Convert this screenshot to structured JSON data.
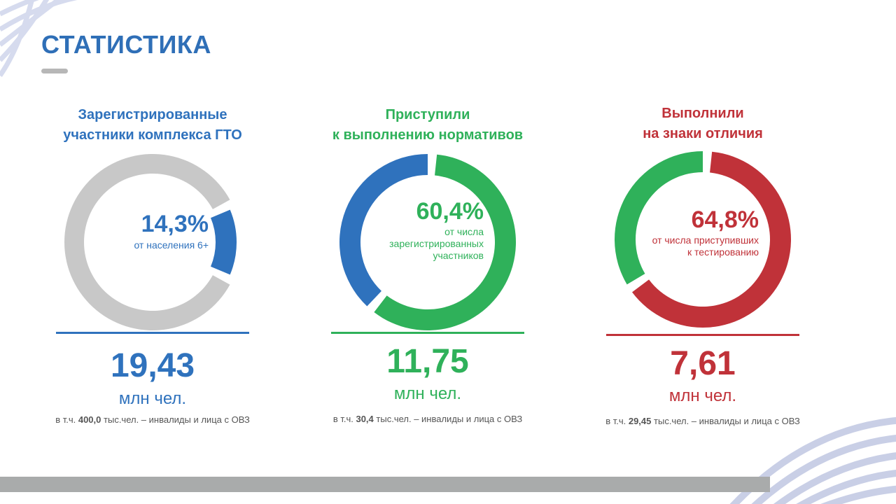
{
  "page": {
    "title": "СТАТИСТИКА"
  },
  "colors": {
    "blue": "#2f72bd",
    "green": "#2fb15a",
    "red": "#c03239",
    "gray_ring": "#c8c8c8",
    "bottom_bar": "#a9abab",
    "decor_lines": "#c9cfe6"
  },
  "chart_data": [
    {
      "type": "pie",
      "title": "Зарегистрированные участники комплекса ГТО",
      "title_lines": [
        "Зарегистрированные",
        "участники комплекса ГТО"
      ],
      "slices": [
        {
          "label": "от населения 6+",
          "value": 14.3,
          "color": "#2f72bd"
        },
        {
          "label": "",
          "value": 85.7,
          "color": "#c8c8c8"
        }
      ],
      "percent_label": "14,3%",
      "percent_note_lines": [
        "от населения 6+"
      ],
      "total_value": "19,43",
      "total_unit": "млн чел.",
      "footnote": {
        "prefix": "в т.ч.",
        "value": "400,0",
        "suffix": "тыс.чел. – инвалиды и лица с ОВЗ"
      }
    },
    {
      "type": "pie",
      "title": "Приступили к выполнению нормативов",
      "title_lines": [
        "Приступили",
        "к выполнению нормативов"
      ],
      "slices": [
        {
          "label": "от числа зарегистрированных участников",
          "value": 60.4,
          "color": "#2fb15a"
        },
        {
          "label": "",
          "value": 39.6,
          "color": "#2f72bd"
        }
      ],
      "percent_label": "60,4%",
      "percent_note_lines": [
        "от числа",
        "зарегистрированных",
        "участников"
      ],
      "total_value": "11,75",
      "total_unit": "млн чел.",
      "footnote": {
        "prefix": "в т.ч.",
        "value": "30,4",
        "suffix": "тыс.чел. – инвалиды и лица с ОВЗ"
      }
    },
    {
      "type": "pie",
      "title": "Выполнили на знаки отличия",
      "title_lines": [
        "Выполнили",
        "на знаки отличия"
      ],
      "slices": [
        {
          "label": "от числа приступивших к тестированию",
          "value": 64.8,
          "color": "#c03239"
        },
        {
          "label": "",
          "value": 35.2,
          "color": "#2fb15a"
        }
      ],
      "percent_label": "64,8%",
      "percent_note_lines": [
        "от числа приступивших",
        "к тестированию"
      ],
      "total_value": "7,61",
      "total_unit": "млн чел.",
      "footnote": {
        "prefix": "в т.ч.",
        "value": "29,45",
        "suffix": "тыс.чел. – инвалиды и лица с ОВЗ"
      }
    }
  ]
}
